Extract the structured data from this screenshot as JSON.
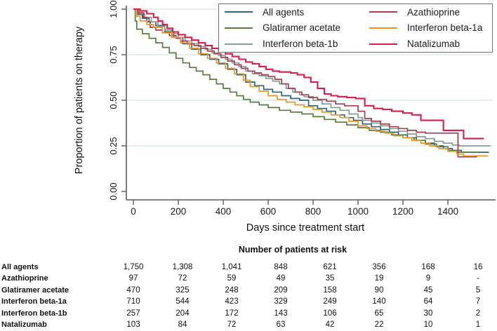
{
  "colors": {
    "axis": "#5a5a5a",
    "grid": "#dcebec",
    "text": "#1a1a1a",
    "legend_border": "#6f6f6f",
    "background": "#ffffff"
  },
  "chart_data": {
    "type": "line",
    "subtype": "kaplan-meier-step",
    "title": "",
    "xlabel": "Days since treatment start",
    "ylabel": "Proportion of patients on therapy",
    "xticks": [
      0,
      200,
      400,
      600,
      800,
      1000,
      1200,
      1400
    ],
    "yticks": [
      "0.00",
      "0.25",
      "0.50",
      "0.75",
      "1.00"
    ],
    "ytick_values": [
      0.0,
      0.25,
      0.5,
      0.75,
      1.0
    ],
    "xlim": [
      0,
      1600
    ],
    "ylim": [
      0,
      1
    ],
    "grid": "horizontal",
    "legend_position": "top-right-inside",
    "series": [
      {
        "name": "All agents",
        "color": "#2e647e",
        "width": 1.7,
        "points": [
          [
            0,
            1.0
          ],
          [
            20,
            0.97
          ],
          [
            40,
            0.95
          ],
          [
            70,
            0.93
          ],
          [
            100,
            0.91
          ],
          [
            140,
            0.875
          ],
          [
            180,
            0.845
          ],
          [
            220,
            0.81
          ],
          [
            260,
            0.78
          ],
          [
            300,
            0.75
          ],
          [
            340,
            0.725
          ],
          [
            380,
            0.7
          ],
          [
            420,
            0.67
          ],
          [
            460,
            0.64
          ],
          [
            500,
            0.6
          ],
          [
            540,
            0.58
          ],
          [
            580,
            0.56
          ],
          [
            620,
            0.545
          ],
          [
            660,
            0.525
          ],
          [
            700,
            0.51
          ],
          [
            740,
            0.5
          ],
          [
            780,
            0.47
          ],
          [
            820,
            0.455
          ],
          [
            860,
            0.44
          ],
          [
            900,
            0.42
          ],
          [
            940,
            0.405
          ],
          [
            980,
            0.39
          ],
          [
            1020,
            0.37
          ],
          [
            1060,
            0.355
          ],
          [
            1100,
            0.34
          ],
          [
            1140,
            0.325
          ],
          [
            1180,
            0.31
          ],
          [
            1220,
            0.295
          ],
          [
            1260,
            0.28
          ],
          [
            1300,
            0.265
          ],
          [
            1340,
            0.25
          ],
          [
            1380,
            0.235
          ],
          [
            1420,
            0.225
          ],
          [
            1460,
            0.215
          ],
          [
            1580,
            0.21
          ]
        ]
      },
      {
        "name": "Glatiramer acetate",
        "color": "#567f3e",
        "width": 1.7,
        "points": [
          [
            0,
            1.0
          ],
          [
            8,
            0.935
          ],
          [
            15,
            0.89
          ],
          [
            40,
            0.865
          ],
          [
            70,
            0.84
          ],
          [
            100,
            0.815
          ],
          [
            130,
            0.79
          ],
          [
            160,
            0.76
          ],
          [
            190,
            0.73
          ],
          [
            220,
            0.705
          ],
          [
            250,
            0.68
          ],
          [
            280,
            0.66
          ],
          [
            310,
            0.64
          ],
          [
            340,
            0.615
          ],
          [
            370,
            0.59
          ],
          [
            400,
            0.565
          ],
          [
            430,
            0.545
          ],
          [
            460,
            0.525
          ],
          [
            490,
            0.505
          ],
          [
            520,
            0.49
          ],
          [
            560,
            0.475
          ],
          [
            600,
            0.46
          ],
          [
            650,
            0.445
          ],
          [
            700,
            0.435
          ],
          [
            750,
            0.425
          ],
          [
            800,
            0.41
          ],
          [
            850,
            0.395
          ],
          [
            900,
            0.38
          ],
          [
            950,
            0.365
          ],
          [
            1000,
            0.35
          ],
          [
            1050,
            0.335
          ],
          [
            1100,
            0.325
          ],
          [
            1150,
            0.31
          ],
          [
            1200,
            0.295
          ],
          [
            1250,
            0.28
          ],
          [
            1300,
            0.26
          ],
          [
            1350,
            0.245
          ],
          [
            1400,
            0.225
          ],
          [
            1440,
            0.215
          ],
          [
            1540,
            0.21
          ]
        ]
      },
      {
        "name": "Interferon beta-1b",
        "color": "#829d95",
        "width": 1.7,
        "points": [
          [
            0,
            1.0
          ],
          [
            25,
            0.975
          ],
          [
            50,
            0.955
          ],
          [
            80,
            0.93
          ],
          [
            110,
            0.905
          ],
          [
            140,
            0.885
          ],
          [
            170,
            0.865
          ],
          [
            200,
            0.845
          ],
          [
            230,
            0.825
          ],
          [
            260,
            0.81
          ],
          [
            290,
            0.795
          ],
          [
            320,
            0.78
          ],
          [
            350,
            0.76
          ],
          [
            380,
            0.745
          ],
          [
            410,
            0.725
          ],
          [
            440,
            0.705
          ],
          [
            470,
            0.685
          ],
          [
            500,
            0.66
          ],
          [
            530,
            0.645
          ],
          [
            560,
            0.635
          ],
          [
            590,
            0.62
          ],
          [
            620,
            0.605
          ],
          [
            650,
            0.59
          ],
          [
            680,
            0.565
          ],
          [
            710,
            0.545
          ],
          [
            740,
            0.53
          ],
          [
            760,
            0.52
          ],
          [
            800,
            0.5
          ],
          [
            840,
            0.48
          ],
          [
            880,
            0.46
          ],
          [
            920,
            0.445
          ],
          [
            960,
            0.425
          ],
          [
            1000,
            0.405
          ],
          [
            1020,
            0.39
          ],
          [
            1060,
            0.375
          ],
          [
            1100,
            0.36
          ],
          [
            1140,
            0.345
          ],
          [
            1180,
            0.33
          ],
          [
            1220,
            0.315
          ],
          [
            1260,
            0.3
          ],
          [
            1300,
            0.29
          ],
          [
            1340,
            0.275
          ],
          [
            1380,
            0.265
          ],
          [
            1420,
            0.255
          ],
          [
            1450,
            0.25
          ],
          [
            1590,
            0.25
          ]
        ]
      },
      {
        "name": "Azathioprine",
        "color": "#a53f4f",
        "width": 1.7,
        "points": [
          [
            0,
            1.0
          ],
          [
            20,
            0.98
          ],
          [
            45,
            0.955
          ],
          [
            60,
            0.93
          ],
          [
            75,
            0.9
          ],
          [
            100,
            0.885
          ],
          [
            130,
            0.87
          ],
          [
            160,
            0.855
          ],
          [
            190,
            0.84
          ],
          [
            210,
            0.825
          ],
          [
            240,
            0.81
          ],
          [
            270,
            0.8
          ],
          [
            300,
            0.785
          ],
          [
            330,
            0.77
          ],
          [
            360,
            0.755
          ],
          [
            390,
            0.735
          ],
          [
            420,
            0.715
          ],
          [
            450,
            0.695
          ],
          [
            480,
            0.675
          ],
          [
            510,
            0.66
          ],
          [
            540,
            0.65
          ],
          [
            570,
            0.64
          ],
          [
            600,
            0.63
          ],
          [
            630,
            0.615
          ],
          [
            660,
            0.59
          ],
          [
            690,
            0.565
          ],
          [
            720,
            0.545
          ],
          [
            750,
            0.53
          ],
          [
            780,
            0.515
          ],
          [
            820,
            0.505
          ],
          [
            860,
            0.495
          ],
          [
            900,
            0.48
          ],
          [
            940,
            0.47
          ],
          [
            1000,
            0.44
          ],
          [
            1030,
            0.4
          ],
          [
            1060,
            0.385
          ],
          [
            1100,
            0.37
          ],
          [
            1140,
            0.355
          ],
          [
            1180,
            0.345
          ],
          [
            1220,
            0.335
          ],
          [
            1260,
            0.325
          ],
          [
            1300,
            0.32
          ],
          [
            1430,
            0.32
          ],
          [
            1445,
            0.19
          ],
          [
            1530,
            0.19
          ]
        ]
      },
      {
        "name": "Interferon beta-1a",
        "color": "#f0941e",
        "width": 1.7,
        "points": [
          [
            0,
            1.0
          ],
          [
            15,
            0.96
          ],
          [
            30,
            0.935
          ],
          [
            60,
            0.915
          ],
          [
            90,
            0.9
          ],
          [
            130,
            0.87
          ],
          [
            170,
            0.845
          ],
          [
            210,
            0.815
          ],
          [
            250,
            0.785
          ],
          [
            290,
            0.755
          ],
          [
            330,
            0.73
          ],
          [
            370,
            0.705
          ],
          [
            410,
            0.675
          ],
          [
            450,
            0.645
          ],
          [
            490,
            0.61
          ],
          [
            520,
            0.575
          ],
          [
            560,
            0.55
          ],
          [
            600,
            0.525
          ],
          [
            640,
            0.505
          ],
          [
            680,
            0.49
          ],
          [
            720,
            0.475
          ],
          [
            760,
            0.465
          ],
          [
            800,
            0.45
          ],
          [
            840,
            0.435
          ],
          [
            880,
            0.42
          ],
          [
            920,
            0.405
          ],
          [
            960,
            0.385
          ],
          [
            1000,
            0.36
          ],
          [
            1040,
            0.345
          ],
          [
            1080,
            0.33
          ],
          [
            1120,
            0.32
          ],
          [
            1160,
            0.305
          ],
          [
            1200,
            0.295
          ],
          [
            1240,
            0.28
          ],
          [
            1280,
            0.265
          ],
          [
            1320,
            0.25
          ],
          [
            1360,
            0.235
          ],
          [
            1400,
            0.22
          ],
          [
            1440,
            0.205
          ],
          [
            1470,
            0.195
          ],
          [
            1580,
            0.195
          ]
        ]
      },
      {
        "name": "Natalizumab",
        "color": "#d91e49",
        "width": 2.1,
        "points": [
          [
            0,
            1.0
          ],
          [
            30,
            0.99
          ],
          [
            60,
            0.975
          ],
          [
            90,
            0.955
          ],
          [
            110,
            0.935
          ],
          [
            130,
            0.915
          ],
          [
            150,
            0.895
          ],
          [
            175,
            0.875
          ],
          [
            200,
            0.86
          ],
          [
            230,
            0.845
          ],
          [
            260,
            0.83
          ],
          [
            290,
            0.815
          ],
          [
            320,
            0.8
          ],
          [
            350,
            0.785
          ],
          [
            380,
            0.77
          ],
          [
            410,
            0.755
          ],
          [
            440,
            0.74
          ],
          [
            470,
            0.725
          ],
          [
            500,
            0.71
          ],
          [
            530,
            0.7
          ],
          [
            560,
            0.685
          ],
          [
            590,
            0.67
          ],
          [
            620,
            0.66
          ],
          [
            650,
            0.655
          ],
          [
            700,
            0.65
          ],
          [
            730,
            0.64
          ],
          [
            760,
            0.625
          ],
          [
            790,
            0.6
          ],
          [
            820,
            0.565
          ],
          [
            850,
            0.535
          ],
          [
            880,
            0.525
          ],
          [
            910,
            0.52
          ],
          [
            950,
            0.515
          ],
          [
            990,
            0.51
          ],
          [
            1030,
            0.47
          ],
          [
            1070,
            0.455
          ],
          [
            1110,
            0.45
          ],
          [
            1150,
            0.44
          ],
          [
            1200,
            0.43
          ],
          [
            1240,
            0.42
          ],
          [
            1280,
            0.39
          ],
          [
            1380,
            0.335
          ],
          [
            1470,
            0.29
          ],
          [
            1560,
            0.29
          ]
        ]
      }
    ],
    "legend_order_columns": [
      [
        "All agents",
        "Glatiramer acetate",
        "Interferon beta-1b"
      ],
      [
        "Azathioprine",
        "Interferon beta-1a",
        "Natalizumab"
      ]
    ]
  },
  "risk_table": {
    "title": "Number of patients at risk",
    "col_days": [
      0,
      200,
      400,
      600,
      800,
      1000,
      1200,
      1400
    ],
    "rows": [
      {
        "label": "All agents",
        "values": [
          "1,750",
          "1,308",
          "1,041",
          "848",
          "621",
          "356",
          "168",
          "16"
        ]
      },
      {
        "label": "Azathioprine",
        "values": [
          "97",
          "72",
          "59",
          "49",
          "35",
          "19",
          "9",
          "-"
        ]
      },
      {
        "label": "Glatiramer acetate",
        "values": [
          "470",
          "325",
          "248",
          "209",
          "158",
          "90",
          "45",
          "5"
        ]
      },
      {
        "label": "Interferon beta-1a",
        "values": [
          "710",
          "544",
          "423",
          "329",
          "249",
          "140",
          "64",
          "7"
        ]
      },
      {
        "label": "Interferon beta-1b",
        "values": [
          "257",
          "204",
          "172",
          "143",
          "106",
          "65",
          "30",
          "2"
        ]
      },
      {
        "label": "Natalizumab",
        "values": [
          "103",
          "84",
          "72",
          "63",
          "42",
          "22",
          "10",
          "1"
        ]
      }
    ]
  }
}
